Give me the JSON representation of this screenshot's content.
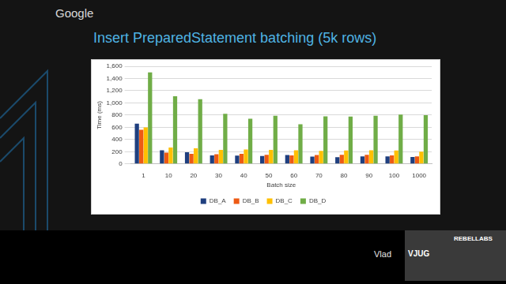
{
  "page": {
    "logo": "Google",
    "speaker": "Vlad",
    "video_overlay": [
      "VJUG",
      "REBELLABS"
    ]
  },
  "chart_data": {
    "type": "bar",
    "title": "Insert PreparedStatement batching (5k rows)",
    "x_label": "Batch size",
    "y_label": "Time (ms)",
    "categories": [
      "1",
      "10",
      "20",
      "30",
      "40",
      "50",
      "60",
      "70",
      "80",
      "90",
      "100",
      "1000"
    ],
    "series": [
      {
        "name": "DB_A",
        "color": "#1f3f7f",
        "values": [
          660,
          225,
          190,
          140,
          135,
          130,
          145,
          120,
          110,
          125,
          125,
          115
        ]
      },
      {
        "name": "DB_B",
        "color": "#ed5a14",
        "values": [
          560,
          185,
          165,
          160,
          165,
          150,
          140,
          145,
          150,
          150,
          140,
          125
        ]
      },
      {
        "name": "DB_C",
        "color": "#ffc000",
        "values": [
          600,
          270,
          255,
          230,
          235,
          230,
          225,
          215,
          220,
          225,
          220,
          200
        ]
      },
      {
        "name": "DB_D",
        "color": "#70ad47",
        "values": [
          1500,
          1110,
          1060,
          820,
          740,
          790,
          650,
          780,
          775,
          790,
          810,
          800
        ]
      }
    ],
    "ylim": [
      0,
      1600
    ],
    "yticks": [
      0,
      200,
      400,
      600,
      800,
      1000,
      1200,
      1400,
      1600
    ],
    "grid": true,
    "legend": "bottom"
  }
}
